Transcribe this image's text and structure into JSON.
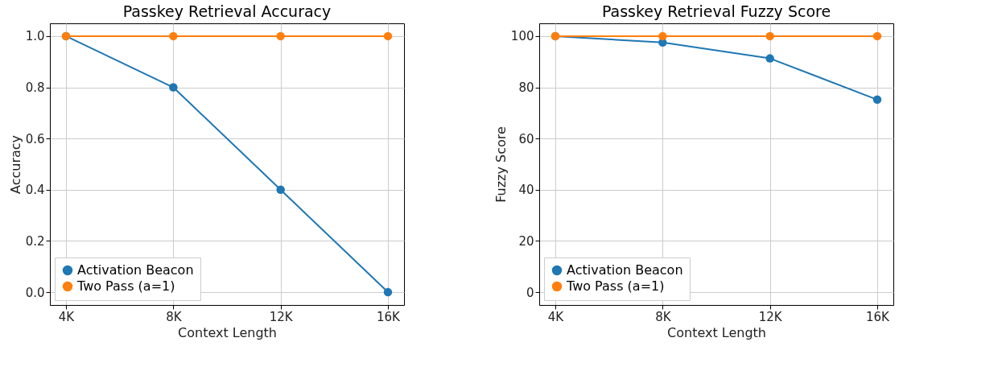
{
  "chart_data": [
    {
      "type": "line",
      "title": "Passkey Retrieval Accuracy",
      "xlabel": "Context Length",
      "ylabel": "Accuracy",
      "categories": [
        "4K",
        "8K",
        "12K",
        "16K"
      ],
      "series": [
        {
          "name": "Activation Beacon",
          "color": "#1f77b4",
          "values": [
            1.0,
            0.8,
            0.4,
            0.0
          ]
        },
        {
          "name": "Two Pass (a=1)",
          "color": "#ff7f0e",
          "values": [
            1.0,
            1.0,
            1.0,
            1.0
          ]
        }
      ],
      "ylim": [
        -0.05,
        1.05
      ],
      "yticks": [
        {
          "value": 0,
          "label": "0.0"
        },
        0.2,
        0.4,
        0.6,
        0.8,
        {
          "value": 1,
          "label": "1.0"
        }
      ],
      "grid": true,
      "legend": "bottom left",
      "marker": "circle",
      "line_style": "solid"
    },
    {
      "type": "line",
      "title": "Passkey Retrieval Fuzzy Score",
      "xlabel": "Context Length",
      "ylabel": "Fuzzy Score",
      "categories": [
        "4K",
        "8K",
        "12K",
        "16K"
      ],
      "series": [
        {
          "name": "Activation Beacon",
          "color": "#1f77b4",
          "values": [
            100,
            97.5,
            91.3,
            75.2
          ]
        },
        {
          "name": "Two Pass (a=1)",
          "color": "#ff7f0e",
          "values": [
            100,
            100,
            100,
            100
          ]
        }
      ],
      "ylim": [
        -5,
        105
      ],
      "yticks": [
        0,
        20,
        40,
        60,
        80,
        100
      ],
      "grid": true,
      "legend": "bottom left",
      "marker": "circle",
      "line_style": "solid"
    }
  ]
}
